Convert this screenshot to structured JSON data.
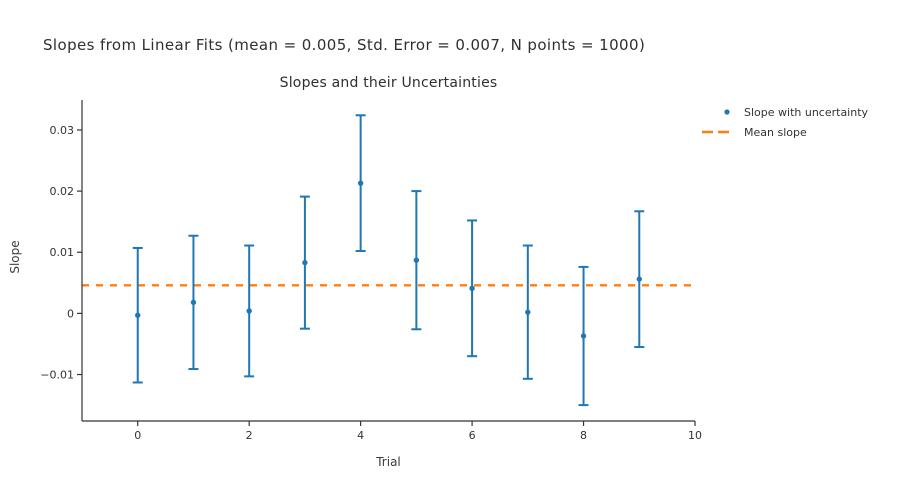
{
  "figure": {
    "suptitle": "Slopes from Linear Fits (mean = 0.005, Std. Error = 0.007, N points = 1000)",
    "background": "#ffffff"
  },
  "chart_data": {
    "type": "scatter",
    "title": "Slopes and their Uncertainties",
    "xlabel": "Trial",
    "ylabel": "Slope",
    "x": [
      0,
      1,
      2,
      3,
      4,
      5,
      6,
      7,
      8,
      9
    ],
    "series": [
      {
        "name": "Slope with uncertainty",
        "values": [
          -0.0003,
          0.0018,
          0.0004,
          0.0083,
          0.0213,
          0.0087,
          0.0041,
          0.0002,
          -0.0037,
          0.0056
        ],
        "yerr": [
          0.011,
          0.0109,
          0.0107,
          0.0108,
          0.0111,
          0.0113,
          0.0111,
          0.0109,
          0.0113,
          0.0111
        ]
      }
    ],
    "mean_slope": 0.0046,
    "stated_mean": 0.005,
    "stated_std_error": 0.007,
    "stated_n_points": 1000,
    "xlim": [
      -1,
      10
    ],
    "ylim": [
      -0.0176,
      0.0349
    ],
    "xticks": {
      "values": [
        0,
        2,
        4,
        6,
        8,
        10
      ],
      "labels": [
        "0",
        "2",
        "4",
        "6",
        "8",
        "10"
      ]
    },
    "yticks": {
      "values": [
        -0.01,
        0,
        0.01,
        0.02,
        0.03
      ],
      "labels": [
        "−0.01",
        "0",
        "0.01",
        "0.02",
        "0.03"
      ]
    },
    "grid": false,
    "legend": {
      "position": "outside-top-right",
      "entries": [
        {
          "label": "Slope with uncertainty",
          "symbol": "circle-marker",
          "color": "#1f77b4"
        },
        {
          "label": "Mean slope",
          "symbol": "dashed-line",
          "color": "#ff7f0e"
        }
      ]
    },
    "colors": {
      "series": "#1f77b4",
      "mean_line": "#ff7f0e",
      "axis": "#333333",
      "text": "#333333"
    }
  }
}
